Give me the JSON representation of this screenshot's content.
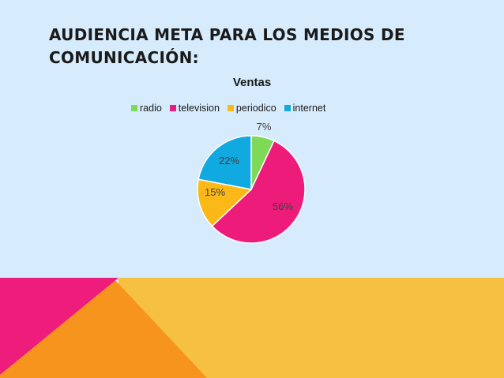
{
  "slide": {
    "title_line1": "AUDIENCIA META PARA LOS MEDIOS DE",
    "title_line2": "COMUNICACIÓN:"
  },
  "colors": {
    "background": "#d6ebfb",
    "footer_pink": "#ee1c7a",
    "footer_orange": "#f7941d",
    "footer_yellow": "#f6c042"
  },
  "chart_data": {
    "type": "pie",
    "title": "Ventas",
    "legend_position": "top",
    "categories": [
      "radio",
      "television",
      "periodico",
      "internet"
    ],
    "values": [
      7,
      56,
      15,
      22
    ],
    "labels": [
      "7%",
      "56%",
      "15%",
      "22%"
    ],
    "colors": [
      "#7ed957",
      "#ed1c7b",
      "#fbb817",
      "#10a9e0"
    ]
  }
}
